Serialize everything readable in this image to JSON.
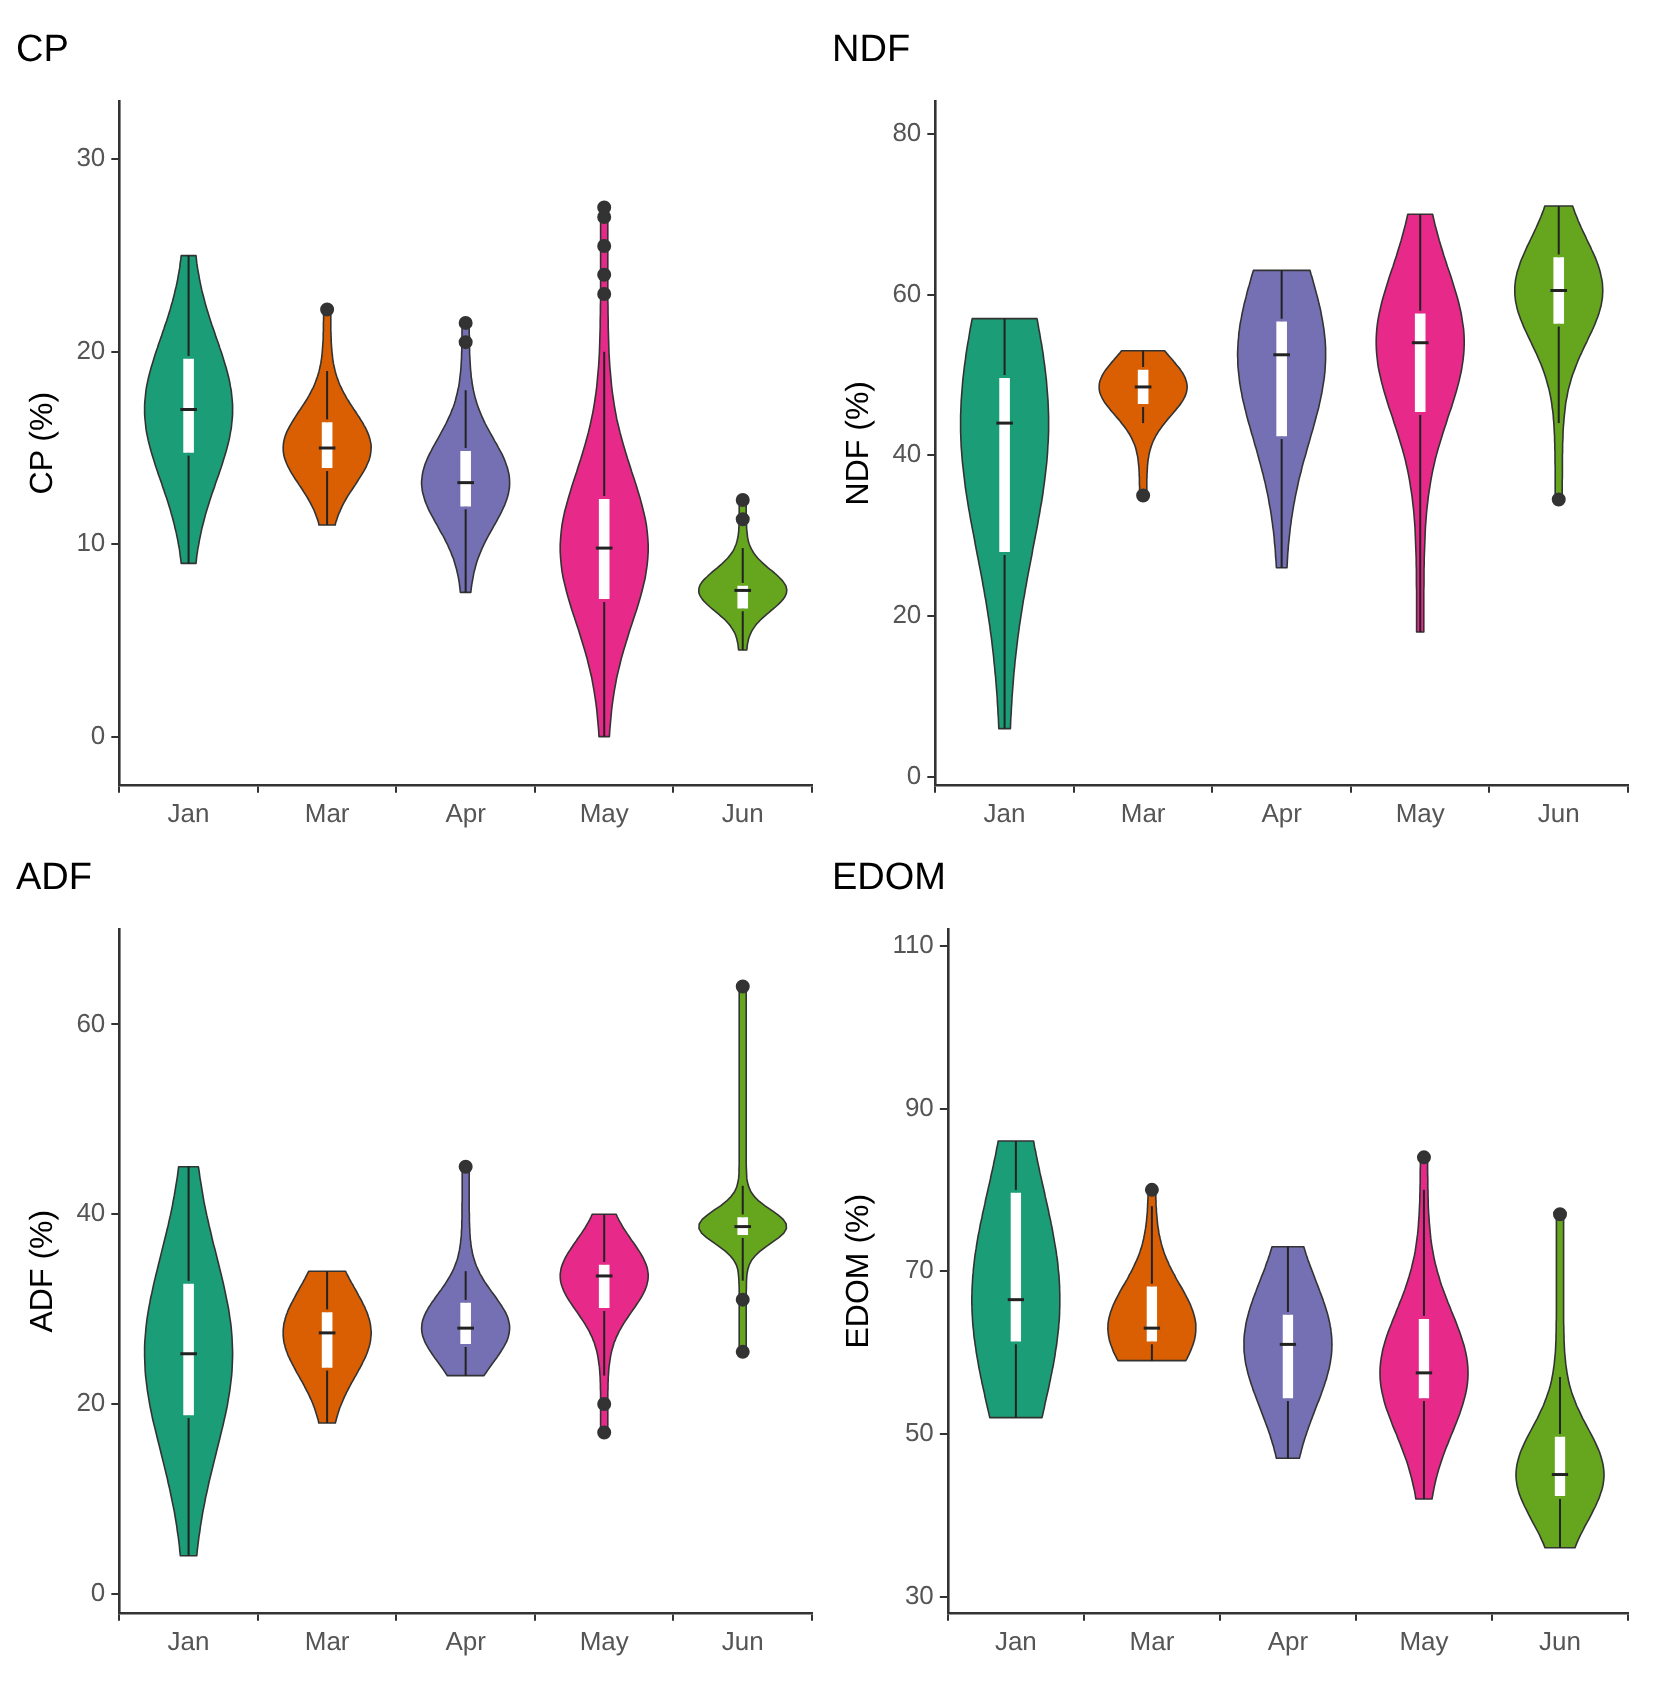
{
  "chart_data": [
    {
      "type": "box",
      "title": "CP",
      "ylabel": "CP (%)",
      "categories": [
        "Jan",
        "Mar",
        "Apr",
        "May",
        "Jun"
      ],
      "colors": [
        "#1b9e77",
        "#d95f02",
        "#7570b3",
        "#e7298a",
        "#66a61e"
      ],
      "ylim": [
        -2.5,
        33
      ],
      "yticks": [
        0,
        10,
        20,
        30
      ],
      "boxes": [
        {
          "low": 9,
          "q1": 14.6,
          "median": 17,
          "q3": 19.8,
          "high": 25
        },
        {
          "low": 11,
          "q1": 13.8,
          "median": 15,
          "q3": 16.5,
          "high": 19,
          "outliers": [
            22.2
          ]
        },
        {
          "low": 7.5,
          "q1": 11.8,
          "median": 13.2,
          "q3": 15,
          "high": 18,
          "outliers": [
            20.5,
            21.5
          ]
        },
        {
          "low": 0,
          "q1": 7,
          "median": 9.8,
          "q3": 12.5,
          "high": 20,
          "outliers": [
            23,
            24,
            25.5,
            27,
            27.5
          ]
        },
        {
          "low": 4.5,
          "q1": 6.5,
          "median": 7.6,
          "q3": 8,
          "high": 9.8,
          "outliers": [
            11.3,
            12.3
          ]
        }
      ]
    },
    {
      "type": "box",
      "title": "NDF",
      "ylabel": "NDF (%)",
      "categories": [
        "Jan",
        "Mar",
        "Apr",
        "May",
        "Jun"
      ],
      "colors": [
        "#1b9e77",
        "#d95f02",
        "#7570b3",
        "#e7298a",
        "#66a61e"
      ],
      "ylim": [
        -1,
        84
      ],
      "yticks": [
        0,
        20,
        40,
        60,
        80
      ],
      "boxes": [
        {
          "low": 6,
          "q1": 27.6,
          "median": 44,
          "q3": 50,
          "high": 57
        },
        {
          "low": 44,
          "q1": 46,
          "median": 48.5,
          "q3": 51,
          "high": 53,
          "outliers": [
            35
          ]
        },
        {
          "low": 26,
          "q1": 42,
          "median": 52.5,
          "q3": 57,
          "high": 63
        },
        {
          "low": 18,
          "q1": 45,
          "median": 54,
          "q3": 58,
          "high": 70
        },
        {
          "low": 44,
          "q1": 56,
          "median": 60.5,
          "q3": 65,
          "high": 71,
          "outliers": [
            34.5
          ]
        }
      ]
    },
    {
      "type": "box",
      "title": "ADF",
      "ylabel": "ADF (%)",
      "categories": [
        "Jan",
        "Mar",
        "Apr",
        "May",
        "Jun"
      ],
      "colors": [
        "#1b9e77",
        "#d95f02",
        "#7570b3",
        "#e7298a",
        "#66a61e"
      ],
      "ylim": [
        -2,
        70
      ],
      "yticks": [
        0,
        20,
        40,
        60
      ],
      "boxes": [
        {
          "low": 4,
          "q1": 18.5,
          "median": 25.3,
          "q3": 33,
          "high": 45
        },
        {
          "low": 18,
          "q1": 23.5,
          "median": 27.5,
          "q3": 30,
          "high": 34
        },
        {
          "low": 23,
          "q1": 26,
          "median": 28,
          "q3": 31,
          "high": 34,
          "outliers": [
            45
          ]
        },
        {
          "low": 23,
          "q1": 29.8,
          "median": 33.5,
          "q3": 35,
          "high": 40,
          "outliers": [
            20,
            17
          ]
        },
        {
          "low": 33,
          "q1": 37.5,
          "median": 38.7,
          "q3": 40,
          "high": 43,
          "outliers": [
            31,
            25.5,
            64
          ]
        }
      ]
    },
    {
      "type": "box",
      "title": "EDOM",
      "ylabel": "EDOM (%)",
      "categories": [
        "Jan",
        "Mar",
        "Apr",
        "May",
        "Jun"
      ],
      "colors": [
        "#1b9e77",
        "#d95f02",
        "#7570b3",
        "#e7298a",
        "#66a61e"
      ],
      "ylim": [
        28,
        112
      ],
      "yticks": [
        30,
        50,
        70,
        90,
        110
      ],
      "boxes": [
        {
          "low": 52,
          "q1": 61,
          "median": 66.5,
          "q3": 80,
          "high": 86
        },
        {
          "low": 59,
          "q1": 61,
          "median": 63,
          "q3": 68.5,
          "high": 78,
          "outliers": [
            80
          ]
        },
        {
          "low": 47,
          "q1": 54,
          "median": 61,
          "q3": 65,
          "high": 73
        },
        {
          "low": 42,
          "q1": 54,
          "median": 57.5,
          "q3": 64.5,
          "high": 80,
          "outliers": [
            84
          ]
        },
        {
          "low": 36,
          "q1": 42,
          "median": 45,
          "q3": 50,
          "high": 57,
          "outliers": [
            77
          ]
        }
      ]
    }
  ]
}
